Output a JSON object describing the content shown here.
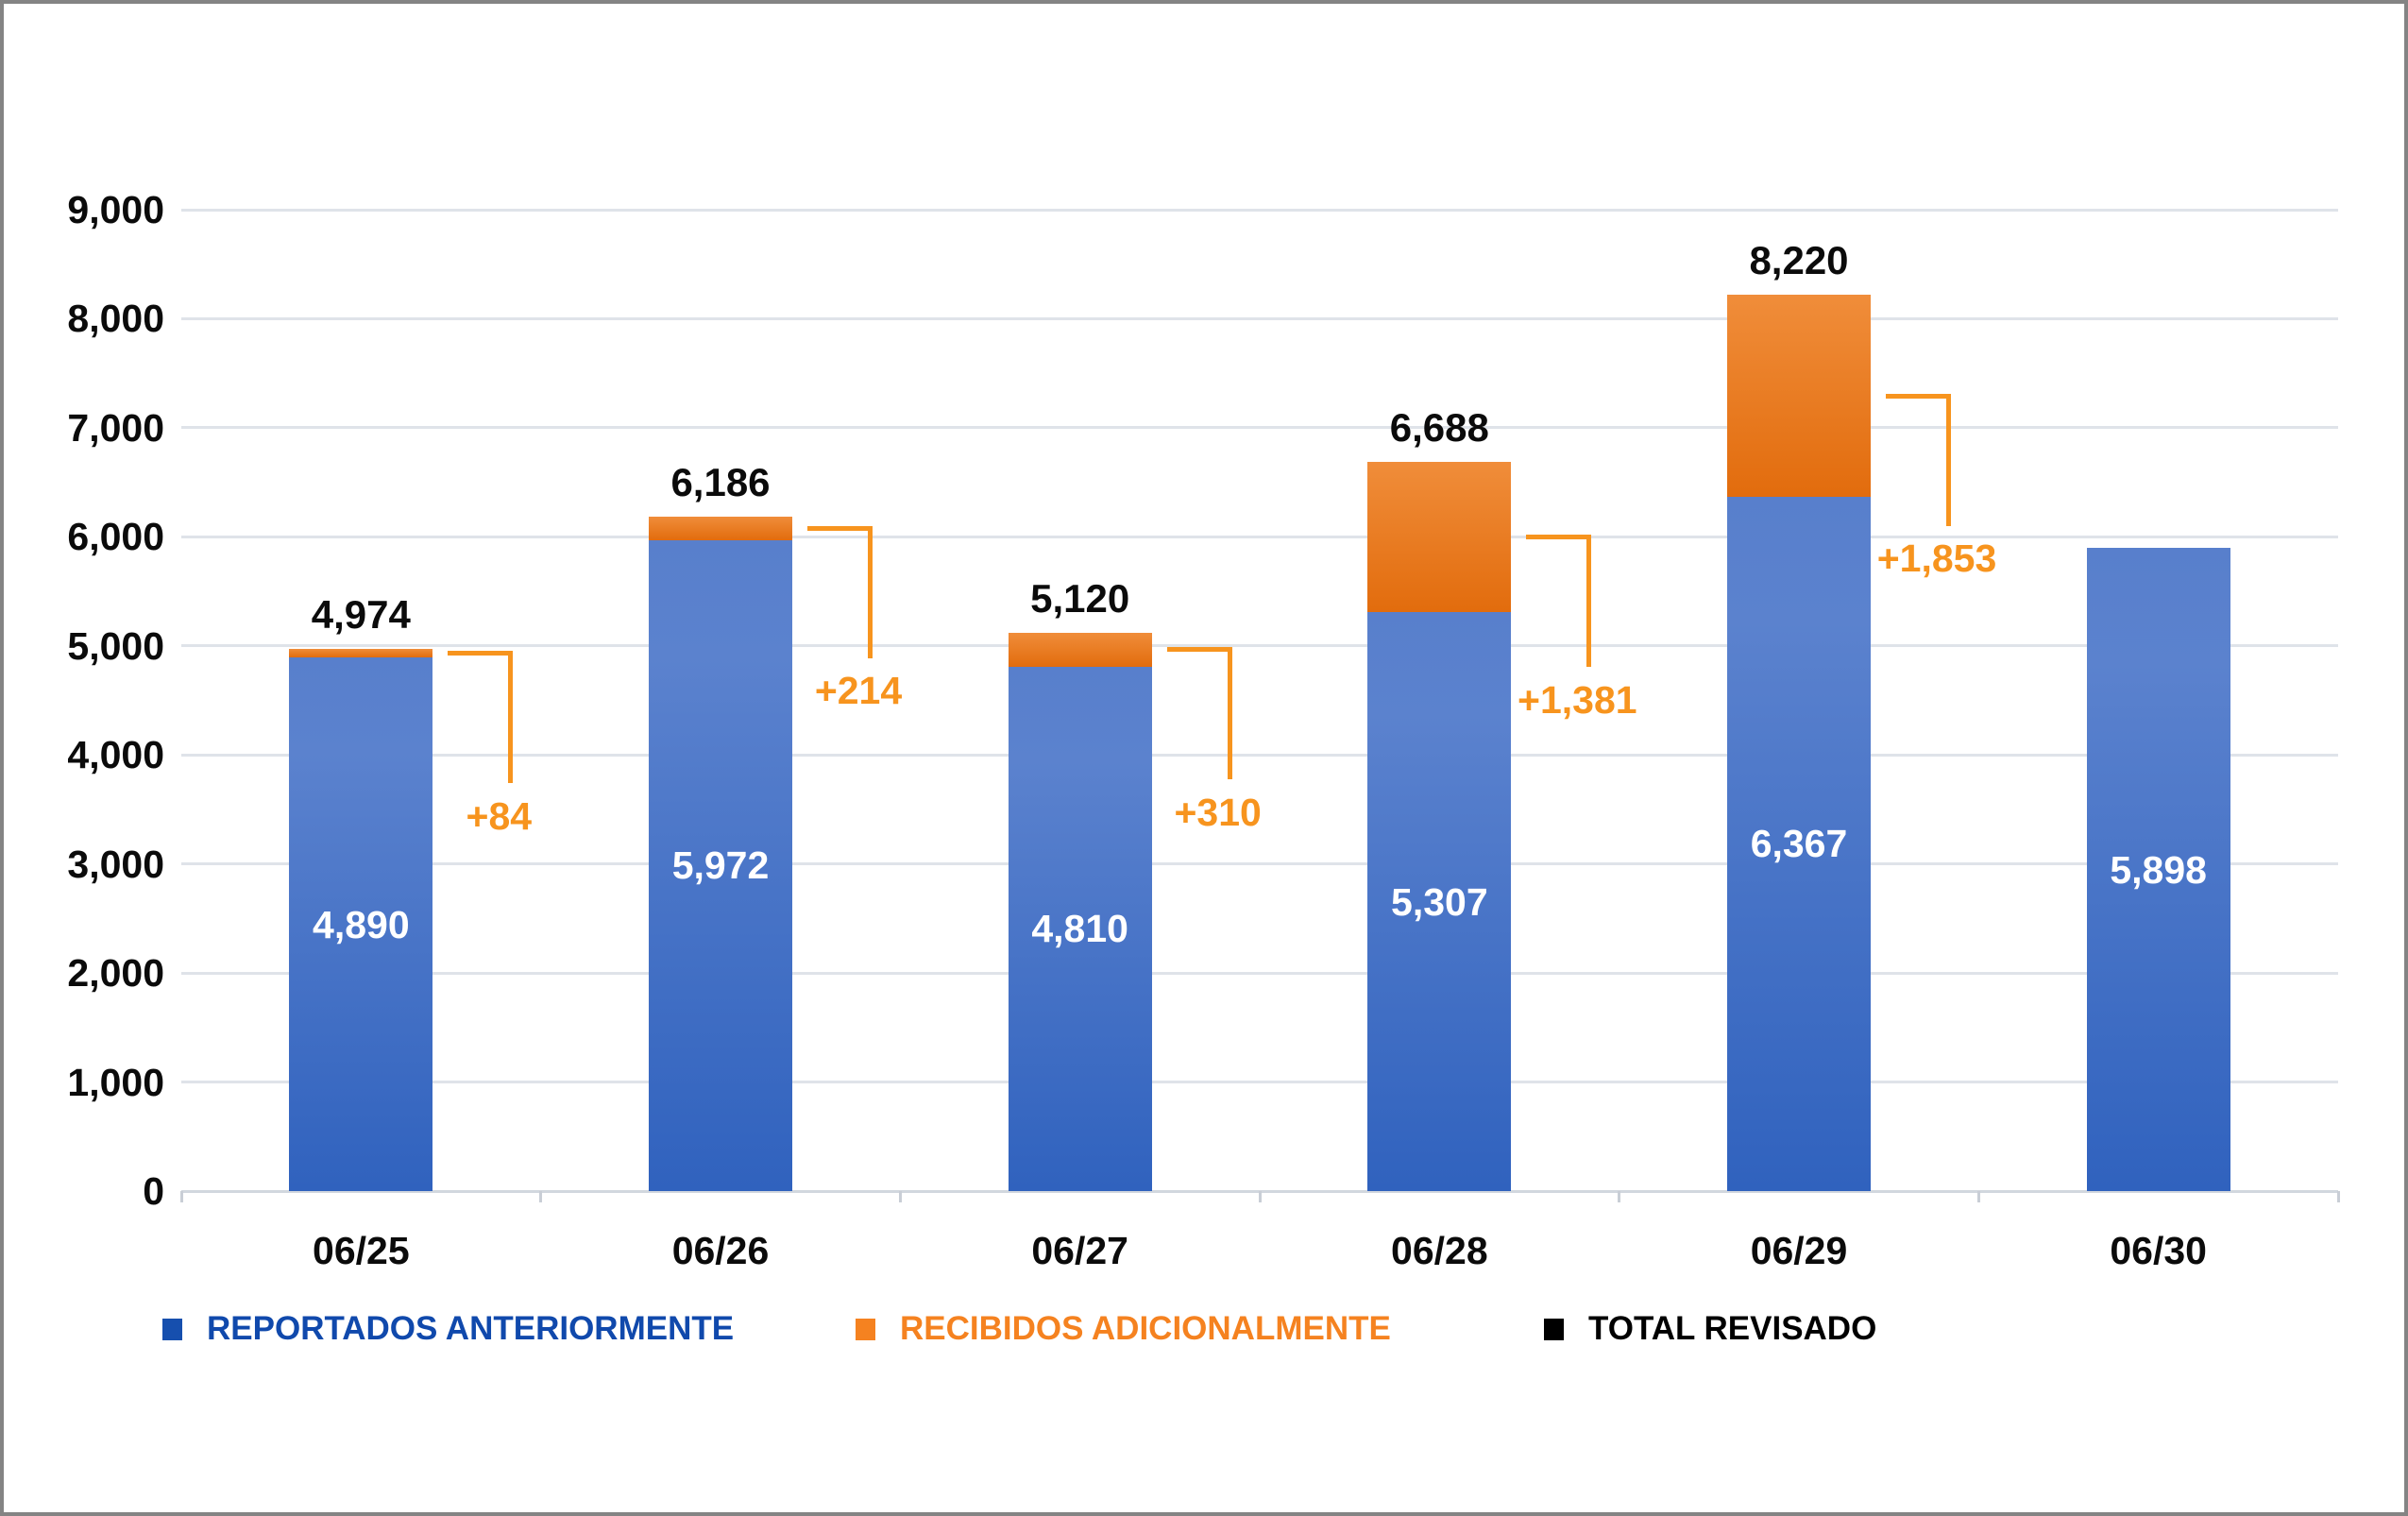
{
  "chart_data": {
    "type": "bar",
    "stacked": true,
    "title": "",
    "xlabel": "",
    "ylabel": "",
    "categories": [
      "06/25",
      "06/26",
      "06/27",
      "06/28",
      "06/29",
      "06/30"
    ],
    "series": [
      {
        "name": "REPORTADOS ANTERIORMENTE",
        "color_top": "#5b82ce",
        "color_bottom": "#3062be",
        "values": [
          4890,
          5972,
          4810,
          5307,
          6367,
          5898
        ]
      },
      {
        "name": "RECIBIDOS ADICIONALMENTE",
        "color_top": "#f08d3a",
        "color_bottom": "#e26c0d",
        "values": [
          84,
          214,
          310,
          1381,
          1853,
          0
        ]
      },
      {
        "name": "TOTAL REVISADO",
        "color": "#000000",
        "values": [
          4974,
          6186,
          5120,
          6688,
          8220,
          null
        ]
      }
    ],
    "inner_labels": [
      "4,890",
      "5,972",
      "4,810",
      "5,307",
      "6,367",
      "5,898"
    ],
    "total_labels": [
      "4,974",
      "6,186",
      "5,120",
      "6,688",
      "8,220",
      ""
    ],
    "delta_labels": [
      "+84",
      "+214",
      "+310",
      "+1,381",
      "+1,853",
      ""
    ],
    "ylim": [
      0,
      9000
    ],
    "ytick_step": 1000,
    "ytick_labels": [
      "0",
      "1,000",
      "2,000",
      "3,000",
      "4,000",
      "5,000",
      "6,000",
      "7,000",
      "8,000",
      "9,000"
    ],
    "grid": true,
    "legend_position": "bottom"
  },
  "legend": {
    "items": [
      {
        "label": "REPORTADOS ANTERIORMENTE",
        "color": "#164fae",
        "text_color": "#1049ac"
      },
      {
        "label": "RECIBIDOS ADICIONALMENTE",
        "color": "#f58220",
        "text_color": "#f58220"
      },
      {
        "label": "TOTAL REVISADO",
        "color": "#000000",
        "text_color": "#000000"
      }
    ]
  },
  "colors": {
    "bracket_orange": "#f7941e",
    "gridline": "#dfe3e9",
    "frame_border": "#848484",
    "background": "#ffffff",
    "total_label": "#0b0b0b",
    "inner_label": "#ffffff"
  }
}
